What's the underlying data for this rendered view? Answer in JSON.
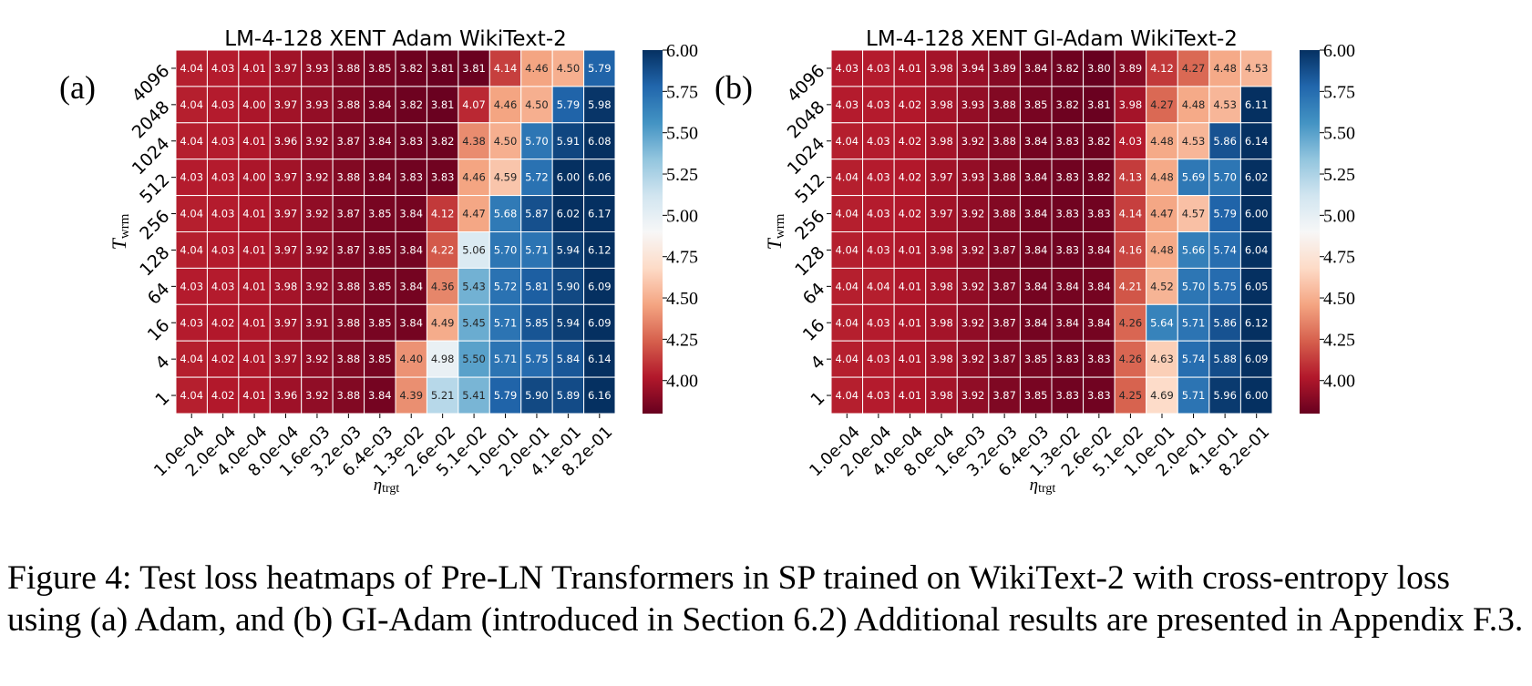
{
  "caption": "Figure 4: Test loss heatmaps of Pre-LN Transformers in SP trained on WikiText-2 with cross-entropy loss using (a) Adam, and (b) GI-Adam (introduced in Section 6.2) Additional results are presented in Appendix F.3.",
  "chart_data": [
    {
      "type": "heatmap",
      "panel_label": "(a)",
      "title": "LM-4-128 XENT Adam WikiText-2",
      "xlabel": "η",
      "xlabel_sub": "trgt",
      "ylabel": "T",
      "ylabel_sub": "wrm",
      "x_categories": [
        "1.0e-04",
        "2.0e-04",
        "4.0e-04",
        "8.0e-04",
        "1.6e-03",
        "3.2e-03",
        "6.4e-03",
        "1.3e-02",
        "2.6e-02",
        "5.1e-02",
        "1.0e-01",
        "2.0e-01",
        "4.1e-01",
        "8.2e-01"
      ],
      "y_categories": [
        "4096",
        "2048",
        "1024",
        "512",
        "256",
        "128",
        "64",
        "16",
        "4",
        "1"
      ],
      "values": [
        [
          4.04,
          4.03,
          4.01,
          3.97,
          3.93,
          3.88,
          3.85,
          3.82,
          3.81,
          3.81,
          4.14,
          4.46,
          4.5,
          5.79
        ],
        [
          4.04,
          4.03,
          4.0,
          3.97,
          3.93,
          3.88,
          3.84,
          3.82,
          3.81,
          4.07,
          4.46,
          4.5,
          5.79,
          5.98
        ],
        [
          4.04,
          4.03,
          4.01,
          3.96,
          3.92,
          3.87,
          3.84,
          3.83,
          3.82,
          4.38,
          4.5,
          5.7,
          5.91,
          6.08
        ],
        [
          4.03,
          4.03,
          4.0,
          3.97,
          3.92,
          3.88,
          3.84,
          3.83,
          3.83,
          4.46,
          4.59,
          5.72,
          6.0,
          6.06
        ],
        [
          4.04,
          4.03,
          4.01,
          3.97,
          3.92,
          3.87,
          3.85,
          3.84,
          4.12,
          4.47,
          5.68,
          5.87,
          6.02,
          6.17
        ],
        [
          4.04,
          4.03,
          4.01,
          3.97,
          3.92,
          3.87,
          3.85,
          3.84,
          4.22,
          5.06,
          5.7,
          5.71,
          5.94,
          6.12
        ],
        [
          4.03,
          4.03,
          4.01,
          3.98,
          3.92,
          3.88,
          3.85,
          3.84,
          4.36,
          5.43,
          5.72,
          5.81,
          5.9,
          6.09
        ],
        [
          4.03,
          4.02,
          4.01,
          3.97,
          3.91,
          3.88,
          3.85,
          3.84,
          4.49,
          5.45,
          5.71,
          5.85,
          5.94,
          6.09
        ],
        [
          4.04,
          4.02,
          4.01,
          3.97,
          3.92,
          3.88,
          3.85,
          4.4,
          4.98,
          5.5,
          5.71,
          5.75,
          5.84,
          6.14
        ],
        [
          4.04,
          4.02,
          4.01,
          3.96,
          3.92,
          3.88,
          3.84,
          4.39,
          5.21,
          5.41,
          5.79,
          5.9,
          5.89,
          6.16
        ]
      ],
      "colormap": "RdBu",
      "vmin": 3.8,
      "vmax": 6.0,
      "colorbar_ticks": [
        "6.00",
        "5.75",
        "5.50",
        "5.25",
        "5.00",
        "4.75",
        "4.50",
        "4.25",
        "4.00"
      ]
    },
    {
      "type": "heatmap",
      "panel_label": "(b)",
      "title": "LM-4-128 XENT GI-Adam WikiText-2",
      "xlabel": "η",
      "xlabel_sub": "trgt",
      "ylabel": "T",
      "ylabel_sub": "wrm",
      "x_categories": [
        "1.0e-04",
        "2.0e-04",
        "4.0e-04",
        "8.0e-04",
        "1.6e-03",
        "3.2e-03",
        "6.4e-03",
        "1.3e-02",
        "2.6e-02",
        "5.1e-02",
        "1.0e-01",
        "2.0e-01",
        "4.1e-01",
        "8.2e-01"
      ],
      "y_categories": [
        "4096",
        "2048",
        "1024",
        "512",
        "256",
        "128",
        "64",
        "16",
        "4",
        "1"
      ],
      "values": [
        [
          4.03,
          4.03,
          4.01,
          3.98,
          3.94,
          3.89,
          3.84,
          3.82,
          3.8,
          3.89,
          4.12,
          4.27,
          4.48,
          4.53
        ],
        [
          4.03,
          4.03,
          4.02,
          3.98,
          3.93,
          3.88,
          3.85,
          3.82,
          3.81,
          3.98,
          4.27,
          4.48,
          4.53,
          6.11
        ],
        [
          4.04,
          4.03,
          4.02,
          3.98,
          3.92,
          3.88,
          3.84,
          3.83,
          3.82,
          4.03,
          4.48,
          4.53,
          5.86,
          6.14
        ],
        [
          4.04,
          4.03,
          4.02,
          3.97,
          3.93,
          3.88,
          3.84,
          3.83,
          3.82,
          4.13,
          4.48,
          5.69,
          5.7,
          6.02
        ],
        [
          4.04,
          4.03,
          4.02,
          3.97,
          3.92,
          3.88,
          3.84,
          3.83,
          3.83,
          4.14,
          4.47,
          4.57,
          5.79,
          6.0
        ],
        [
          4.04,
          4.03,
          4.01,
          3.98,
          3.92,
          3.87,
          3.84,
          3.83,
          3.84,
          4.16,
          4.48,
          5.66,
          5.74,
          6.04
        ],
        [
          4.04,
          4.04,
          4.01,
          3.98,
          3.92,
          3.87,
          3.84,
          3.84,
          3.84,
          4.21,
          4.52,
          5.7,
          5.75,
          6.05
        ],
        [
          4.04,
          4.03,
          4.01,
          3.98,
          3.92,
          3.87,
          3.84,
          3.84,
          3.84,
          4.26,
          5.64,
          5.71,
          5.86,
          6.12
        ],
        [
          4.04,
          4.03,
          4.01,
          3.98,
          3.92,
          3.87,
          3.85,
          3.83,
          3.83,
          4.26,
          4.63,
          5.74,
          5.88,
          6.09
        ],
        [
          4.04,
          4.03,
          4.01,
          3.98,
          3.92,
          3.87,
          3.85,
          3.83,
          3.83,
          4.25,
          4.69,
          5.71,
          5.96,
          6.0
        ]
      ],
      "colormap": "RdBu",
      "vmin": 3.8,
      "vmax": 6.0,
      "colorbar_ticks": [
        "6.00",
        "5.75",
        "5.50",
        "5.25",
        "5.00",
        "4.75",
        "4.50",
        "4.25",
        "4.00"
      ]
    }
  ]
}
